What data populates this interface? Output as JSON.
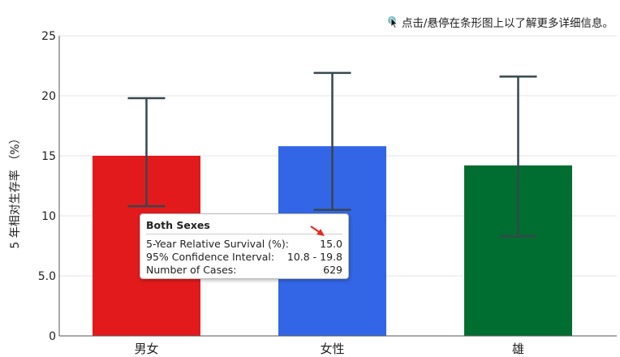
{
  "hint": {
    "icon": "pointer-hint-icon",
    "text": "点击/悬停在条形图上以了解更多详细信息。"
  },
  "chart_data": {
    "type": "bar",
    "ylabel": "5 年相对生存率 （%）",
    "xlabel": "",
    "ylim": [
      0,
      25
    ],
    "yticks": [
      "0",
      "5.0",
      "10",
      "15",
      "20",
      "25"
    ],
    "yticks_values": [
      0,
      5,
      10,
      15,
      20,
      25
    ],
    "grid": true,
    "categories": [
      "男女",
      "女性",
      "雄"
    ],
    "values": [
      15.0,
      15.8,
      14.2
    ],
    "error_low": [
      10.8,
      10.5,
      8.3
    ],
    "error_high": [
      19.8,
      21.9,
      21.6
    ],
    "colors": [
      "#e31a1c",
      "#3366e6",
      "#006e30"
    ],
    "error_bar_color": "#37474f"
  },
  "tooltip": {
    "title": "Both Sexes",
    "rows": [
      {
        "label": "5-Year Relative Survival (%):",
        "value": "15.0"
      },
      {
        "label": "95% Confidence Interval:",
        "value": "10.8 - 19.8"
      },
      {
        "label": "Number of Cases:",
        "value": "629"
      }
    ],
    "pointer_color": "#e8281e"
  }
}
